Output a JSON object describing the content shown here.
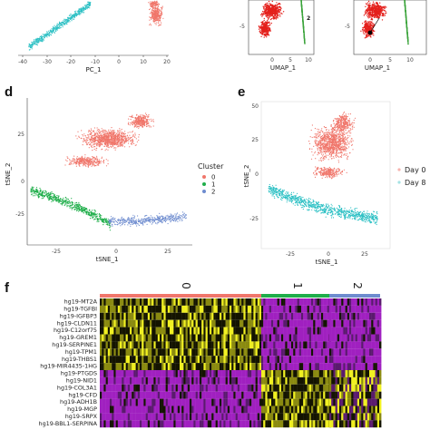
{
  "panels": {
    "d": {
      "letter": "d"
    },
    "e": {
      "letter": "e"
    },
    "f": {
      "letter": "f"
    }
  },
  "colors": {
    "cluster0": "#f0766b",
    "cluster1": "#1fae4a",
    "cluster2": "#6e8ccf",
    "day0": "#f0766b",
    "day8": "#2cc0c4",
    "umap_red": "#e4201c",
    "umap_green": "#3aa33a",
    "heat_low": "#a020c0",
    "heat_mid": "#141400",
    "heat_high": "#f0f020"
  },
  "chart_data": [
    {
      "type": "scatter",
      "id": "pca-partial",
      "xlabel": "PC_1",
      "xticks": [
        "-40",
        "-30",
        "-20",
        "-10",
        "0",
        "10",
        "20"
      ]
    },
    {
      "type": "scatter",
      "id": "umap-a",
      "xlabel": "UMAP_1",
      "yticks": [
        "-5"
      ],
      "xticks": [
        "0",
        "5",
        "10"
      ],
      "labels": [
        "2"
      ]
    },
    {
      "type": "scatter",
      "id": "umap-b",
      "xlabel": "UMAP_1",
      "yticks": [
        "-5"
      ],
      "xticks": [
        "0",
        "5",
        "10"
      ]
    },
    {
      "type": "scatter",
      "id": "tsne-cluster",
      "xlabel": "tSNE_1",
      "ylabel": "tSNE_2",
      "xticks": [
        "-25",
        "0",
        "25"
      ],
      "yticks": [
        "25",
        "0",
        "-25"
      ],
      "legend_title": "Cluster",
      "legend": [
        "0",
        "1",
        "2"
      ]
    },
    {
      "type": "scatter",
      "id": "tsne-day",
      "xlabel": "tSNE_1",
      "ylabel": "tSNE_2",
      "xticks": [
        "-25",
        "0",
        "25"
      ],
      "yticks": [
        "50",
        "25",
        "0",
        "-25"
      ],
      "legend": [
        "Day 0",
        "Day 8"
      ]
    },
    {
      "type": "heatmap",
      "id": "gene-heatmap",
      "clusters": [
        "0",
        "1",
        "2"
      ],
      "genes": [
        "hg19-MT2A",
        "hg19-TGFBI",
        "hg19-IGFBP3",
        "hg19-CLDN11",
        "hg19-C12orf75",
        "hg19-GREM1",
        "hg19-SERPINE1",
        "hg19-TPM1",
        "hg19-THBS1",
        "hg19-MIR4435-1HG",
        "hg19-PTGDS",
        "hg19-NID1",
        "hg19-COL3A1",
        "hg19-CFD",
        "hg19-ADH1B",
        "hg19-MGP",
        "hg19-SRPX",
        "hg19-BBL1-SERPINA"
      ]
    }
  ]
}
